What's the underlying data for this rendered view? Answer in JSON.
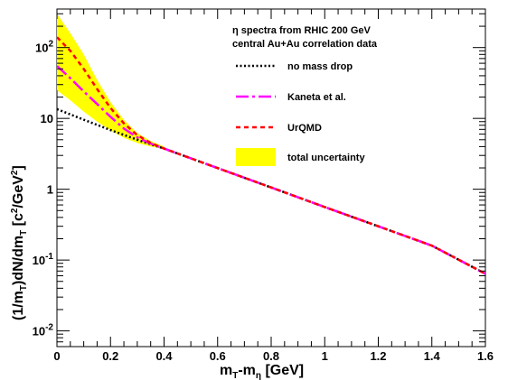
{
  "chart_data": {
    "type": "line",
    "title_lines": [
      "η spectra from RHIC 200 GeV",
      "central Au+Au correlation data"
    ],
    "xlabel": {
      "main": "m",
      "sub1": "T",
      "mid": "-m",
      "sub2": "η",
      "tail": " [GeV]"
    },
    "ylabel": {
      "p1": "(1/m",
      "s1": "T",
      "p2": ")dN/dm",
      "s2": "T",
      "p3": "  [c",
      "sup1": "2",
      "p4": "/GeV",
      "sup2": "2",
      "p5": "]"
    },
    "xlim": [
      0,
      1.6
    ],
    "ylim": [
      0.006,
      350
    ],
    "yscale": "log",
    "x_ticks": [
      {
        "value": 0,
        "label": "0"
      },
      {
        "value": 0.2,
        "label": "0.2"
      },
      {
        "value": 0.4,
        "label": "0.4"
      },
      {
        "value": 0.6,
        "label": "0.6"
      },
      {
        "value": 0.8,
        "label": "0.8"
      },
      {
        "value": 1.0,
        "label": "1"
      },
      {
        "value": 1.2,
        "label": "1.2"
      },
      {
        "value": 1.4,
        "label": "1.4"
      },
      {
        "value": 1.6,
        "label": "1.6"
      }
    ],
    "y_ticks": [
      {
        "value": 0.01,
        "base": "10",
        "exp": "-2"
      },
      {
        "value": 0.1,
        "base": "10",
        "exp": "-1"
      },
      {
        "value": 1,
        "base": "1",
        "exp": ""
      },
      {
        "value": 10,
        "base": "10",
        "exp": ""
      },
      {
        "value": 100,
        "base": "10",
        "exp": "2"
      }
    ],
    "legend_placement": "top-right",
    "series": [
      {
        "name": "no mass drop",
        "style": "dotted",
        "color": "#000000",
        "x": [
          0,
          0.1,
          0.2,
          0.3,
          0.4,
          0.6,
          0.8,
          1.0,
          1.2,
          1.4,
          1.6
        ],
        "y": [
          13.5,
          9.6,
          6.85,
          5.0,
          3.75,
          1.99,
          1.06,
          0.56,
          0.3,
          0.16,
          0.064
        ]
      },
      {
        "name": "Kaneta et al.",
        "style": "dashdot",
        "color": "#ff00ff",
        "x": [
          0,
          0.05,
          0.1,
          0.15,
          0.2,
          0.25,
          0.3,
          0.35,
          0.4,
          0.6,
          0.8,
          1.0,
          1.2,
          1.4,
          1.6
        ],
        "y": [
          55,
          37,
          24,
          16,
          10.5,
          7.2,
          5.4,
          4.4,
          3.75,
          1.99,
          1.06,
          0.56,
          0.3,
          0.16,
          0.064
        ]
      },
      {
        "name": "UrQMD",
        "style": "dashed",
        "color": "#ff0000",
        "x": [
          0,
          0.05,
          0.1,
          0.15,
          0.2,
          0.25,
          0.3,
          0.35,
          0.4,
          0.6,
          0.8,
          1.0,
          1.2,
          1.4,
          1.6
        ],
        "y": [
          140,
          90,
          50,
          26,
          14,
          8.5,
          5.8,
          4.5,
          3.75,
          1.99,
          1.06,
          0.56,
          0.3,
          0.16,
          0.064
        ]
      }
    ],
    "uncertainty_band": {
      "name": "total uncertainty",
      "color": "#ffff00",
      "x": [
        0,
        0.05,
        0.1,
        0.15,
        0.2,
        0.25,
        0.3,
        0.35,
        0.4
      ],
      "upper": [
        300,
        160,
        80,
        35,
        17,
        9.5,
        6.2,
        4.8,
        4.0
      ],
      "lower": [
        25,
        18,
        12.5,
        9.0,
        6.8,
        5.3,
        4.5,
        4.0,
        3.7
      ]
    }
  }
}
